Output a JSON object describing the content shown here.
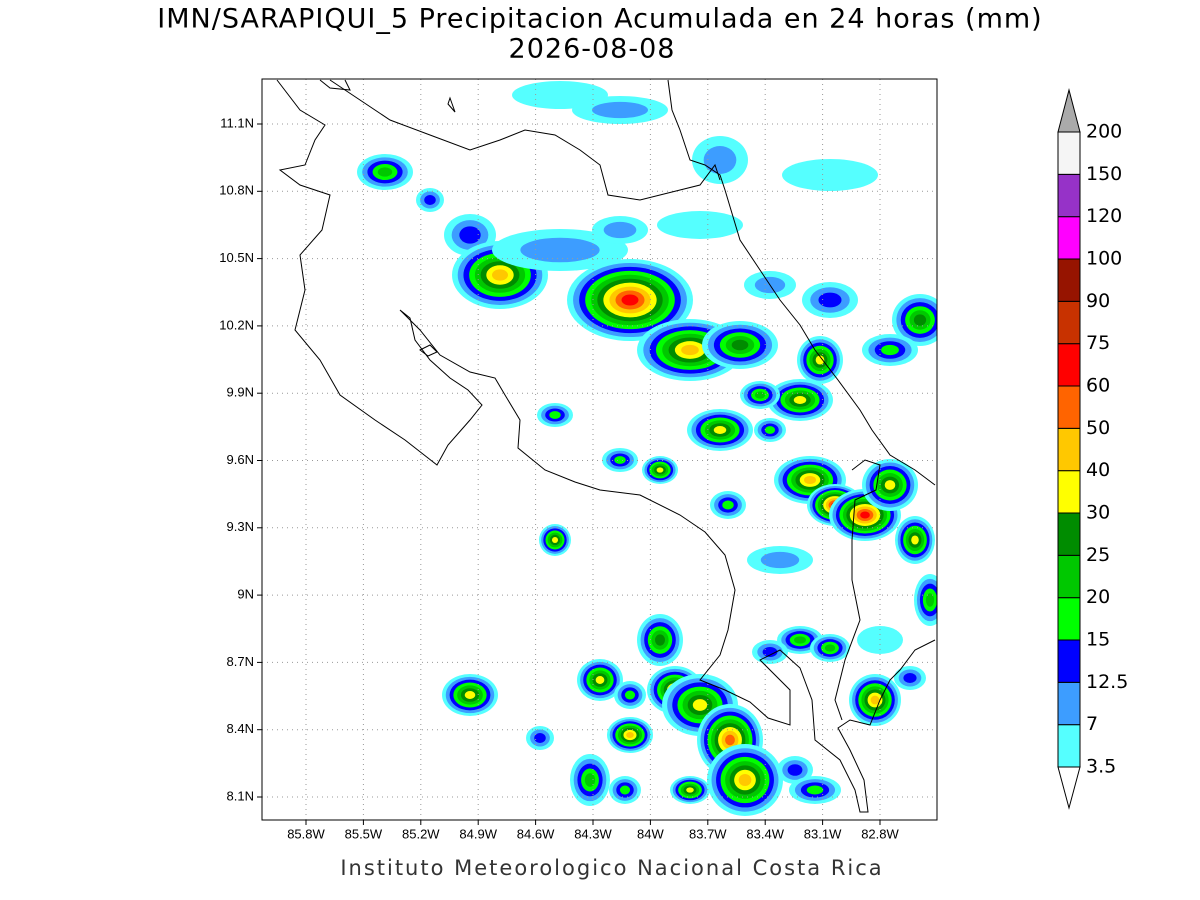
{
  "title": "IMN/SARAPIQUI_5 Precipitacion Acumulada en 24 horas (mm)",
  "date": "2026-08-08",
  "footer": "Instituto Meteorologico Nacional Costa Rica",
  "map": {
    "x_ticks": [
      "85.8W",
      "85.5W",
      "85.2W",
      "84.9W",
      "84.6W",
      "84.3W",
      "84W",
      "83.7W",
      "83.4W",
      "83.1W",
      "82.8W"
    ],
    "y_ticks": [
      "11.1N",
      "10.8N",
      "10.5N",
      "10.2N",
      "9.9N",
      "9.6N",
      "9.3N",
      "9N",
      "8.7N",
      "8.4N",
      "8.1N"
    ]
  },
  "colorbar": {
    "levels": [
      3.5,
      7,
      12.5,
      15,
      20,
      25,
      30,
      40,
      50,
      60,
      75,
      90,
      100,
      120,
      150,
      200
    ],
    "colors": [
      "#55ffff",
      "#3d9dff",
      "#0000ff",
      "#00ff00",
      "#00c800",
      "#008c00",
      "#ffff00",
      "#ffc800",
      "#ff6400",
      "#ff0000",
      "#c83200",
      "#961400",
      "#ff00ff",
      "#9632c8",
      "#f5f5f5"
    ],
    "over_color": "#aaaaaa"
  }
}
